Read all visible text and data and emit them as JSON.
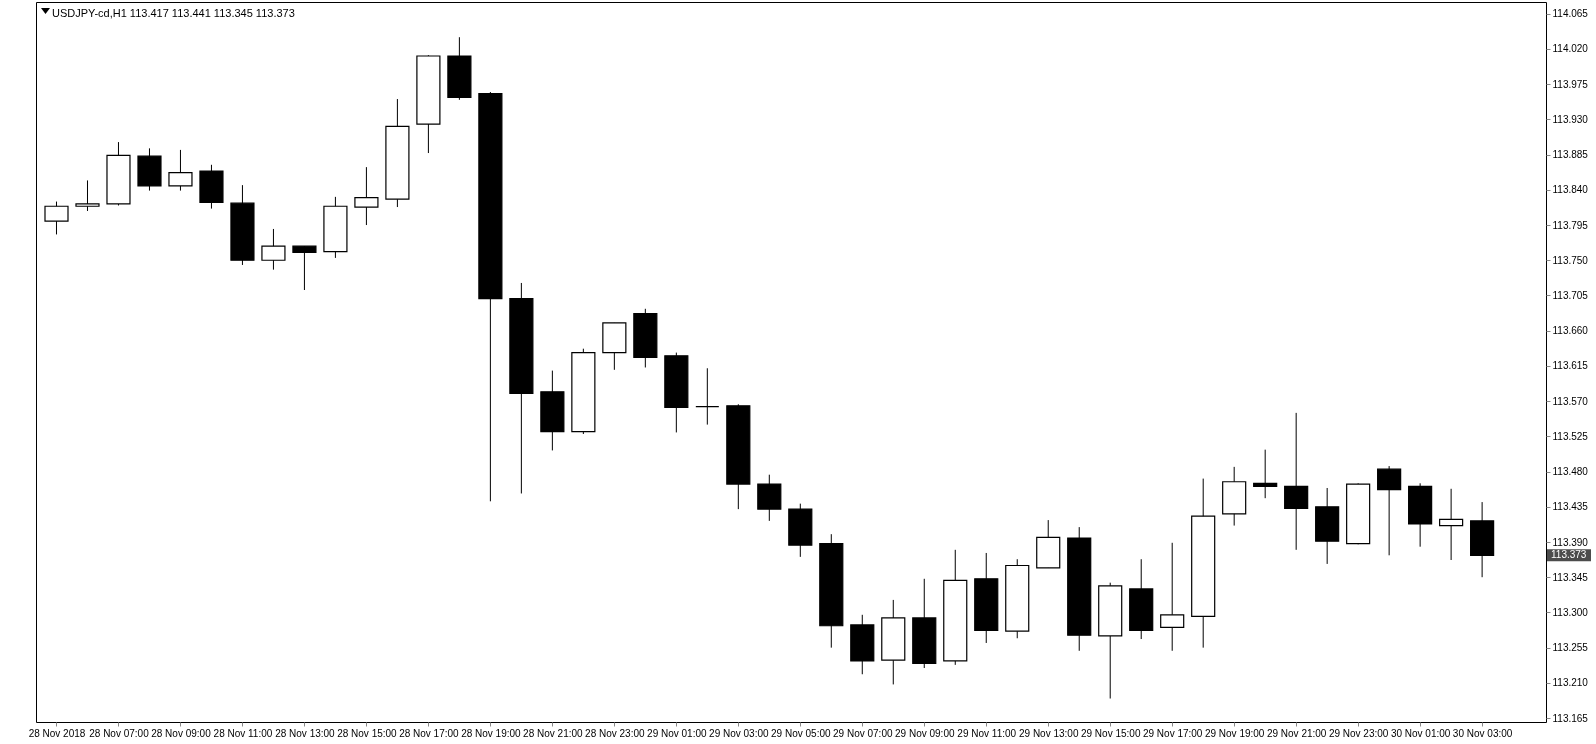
{
  "chart_data": {
    "type": "candlestick",
    "title": "USDJPY-cd,H1  113.417 113.441 113.345 113.373",
    "categories": [
      "28 Nov 2018",
      null,
      "28 Nov 07:00",
      null,
      "28 Nov 09:00",
      null,
      "28 Nov 11:00",
      null,
      "28 Nov 13:00",
      null,
      "28 Nov 15:00",
      null,
      "28 Nov 17:00",
      null,
      "28 Nov 19:00",
      null,
      "28 Nov 21:00",
      null,
      "28 Nov 23:00",
      null,
      "29 Nov 01:00",
      null,
      "29 Nov 03:00",
      null,
      "29 Nov 05:00",
      null,
      "29 Nov 07:00",
      null,
      "29 Nov 09:00",
      null,
      "29 Nov 11:00",
      null,
      "29 Nov 13:00",
      null,
      "29 Nov 15:00",
      null,
      "29 Nov 17:00",
      null,
      "29 Nov 19:00",
      null,
      "29 Nov 21:00",
      null,
      "29 Nov 23:00",
      null,
      "30 Nov 01:00",
      null,
      "30 Nov 03:00"
    ],
    "ohlc": [
      [
        113.8,
        113.825,
        113.783,
        113.819
      ],
      [
        113.819,
        113.852,
        113.813,
        113.822
      ],
      [
        113.822,
        113.901,
        113.82,
        113.884
      ],
      [
        113.883,
        113.893,
        113.839,
        113.845
      ],
      [
        113.845,
        113.891,
        113.839,
        113.862
      ],
      [
        113.864,
        113.872,
        113.816,
        113.824
      ],
      [
        113.823,
        113.846,
        113.744,
        113.75
      ],
      [
        113.75,
        113.79,
        113.738,
        113.768
      ],
      [
        113.768,
        113.768,
        113.712,
        113.76
      ],
      [
        113.761,
        113.831,
        113.753,
        113.819
      ],
      [
        113.818,
        113.869,
        113.795,
        113.83
      ],
      [
        113.828,
        113.956,
        113.818,
        113.921
      ],
      [
        113.924,
        114.012,
        113.887,
        114.011
      ],
      [
        114.011,
        114.035,
        113.955,
        113.958
      ],
      [
        113.963,
        113.965,
        113.442,
        113.701
      ],
      [
        113.701,
        113.721,
        113.452,
        113.58
      ],
      [
        113.582,
        113.609,
        113.507,
        113.531
      ],
      [
        113.531,
        113.637,
        113.528,
        113.632
      ],
      [
        113.632,
        113.67,
        113.61,
        113.67
      ],
      [
        113.682,
        113.688,
        113.613,
        113.626
      ],
      [
        113.628,
        113.632,
        113.53,
        113.562
      ],
      [
        113.563,
        113.612,
        113.54,
        113.563
      ],
      [
        113.564,
        113.566,
        113.432,
        113.464
      ],
      [
        113.464,
        113.476,
        113.417,
        113.432
      ],
      [
        113.432,
        113.439,
        113.371,
        113.386
      ],
      [
        113.388,
        113.4,
        113.255,
        113.283
      ],
      [
        113.284,
        113.297,
        113.221,
        113.238
      ],
      [
        113.239,
        113.316,
        113.208,
        113.293
      ],
      [
        113.293,
        113.343,
        113.229,
        113.235
      ],
      [
        113.238,
        113.38,
        113.233,
        113.341
      ],
      [
        113.343,
        113.376,
        113.261,
        113.277
      ],
      [
        113.276,
        113.368,
        113.267,
        113.36
      ],
      [
        113.357,
        113.418,
        113.357,
        113.396
      ],
      [
        113.395,
        113.409,
        113.251,
        113.271
      ],
      [
        113.27,
        113.338,
        113.19,
        113.334
      ],
      [
        113.33,
        113.368,
        113.266,
        113.277
      ],
      [
        113.281,
        113.389,
        113.251,
        113.297
      ],
      [
        113.295,
        113.471,
        113.255,
        113.423
      ],
      [
        113.426,
        113.486,
        113.411,
        113.467
      ],
      [
        113.465,
        113.508,
        113.446,
        113.461
      ],
      [
        113.461,
        113.555,
        113.38,
        113.433
      ],
      [
        113.435,
        113.459,
        113.362,
        113.391
      ],
      [
        113.388,
        113.465,
        113.387,
        113.464
      ],
      [
        113.483,
        113.487,
        113.373,
        113.457
      ],
      [
        113.461,
        113.465,
        113.384,
        113.413
      ],
      [
        113.411,
        113.458,
        113.367,
        113.419
      ],
      [
        113.417,
        113.441,
        113.345,
        113.373
      ]
    ],
    "colors": [
      "#ffffff",
      "#ffffff",
      "#ffffff",
      "#000000",
      "#ffffff",
      "#000000",
      "#000000",
      "#ffffff",
      "#000000",
      "#ffffff",
      "#ffffff",
      "#ffffff",
      "#ffffff",
      "#000000",
      "#000000",
      "#000000",
      "#000000",
      "#ffffff",
      "#ffffff",
      "#000000",
      "#000000",
      "#000000",
      "#000000",
      "#000000",
      "#000000",
      "#000000",
      "#000000",
      "#ffffff",
      "#000000",
      "#ffffff",
      "#000000",
      "#ffffff",
      "#ffffff",
      "#000000",
      "#ffffff",
      "#000000",
      "#ffffff",
      "#ffffff",
      "#ffffff",
      "#000000",
      "#000000",
      "#000000",
      "#ffffff",
      "#000000",
      "#000000",
      "#ffffff",
      "#000000"
    ],
    "ylim": [
      113.16,
      114.08
    ],
    "yticks": [
      113.165,
      {
        "value": 113.21,
        "label": "113.210"
      },
      113.255,
      {
        "value": 113.3,
        "label": "113.300"
      },
      113.345,
      {
        "value": 113.39,
        "label": "113.390"
      },
      113.435,
      {
        "value": 113.48,
        "label": "113.480"
      },
      113.525,
      {
        "value": 113.57,
        "label": "113.570"
      },
      113.615,
      {
        "value": 113.66,
        "label": "113.660"
      },
      113.705,
      {
        "value": 113.75,
        "label": "113.750"
      },
      113.795,
      {
        "value": 113.84,
        "label": "113.840"
      },
      113.885,
      {
        "value": 113.93,
        "label": "113.930"
      },
      113.975,
      {
        "value": 114.02,
        "label": "114.020"
      },
      114.065
    ],
    "annotations": [
      "113.373"
    ],
    "grid": false
  }
}
